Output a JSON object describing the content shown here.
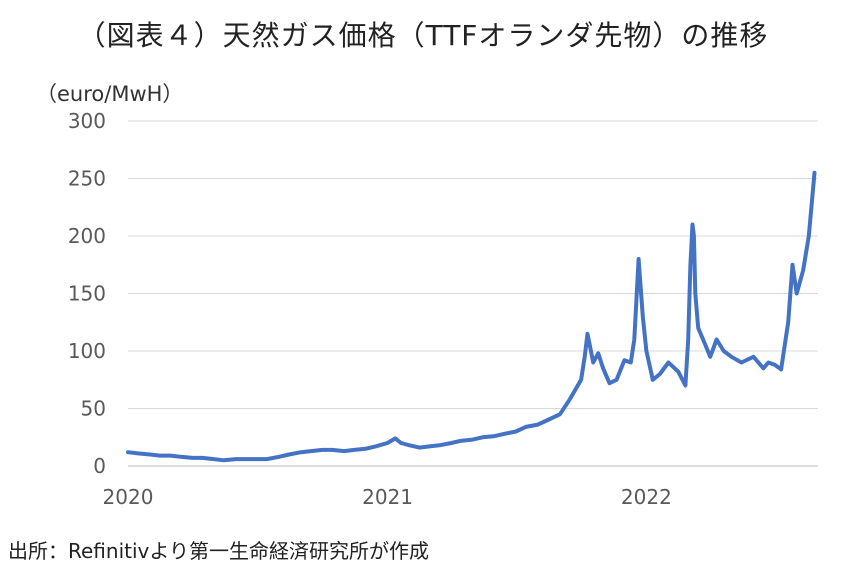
{
  "title": "（図表４）天然ガス価格（TTFオランダ先物）の推移",
  "unit_label": "（euro/MwH）",
  "source": "出所：Refinitivより第一生命経済研究所が作成",
  "chart_data": {
    "type": "line",
    "title": "（図表４）天然ガス価格（TTFオランダ先物）の推移",
    "ylabel": "（euro/MwH）",
    "xlabel": "",
    "ylim": [
      0,
      300
    ],
    "yticks": [
      "0",
      "50",
      "100",
      "150",
      "200",
      "250",
      "300"
    ],
    "xlim": [
      "2020-01-01",
      "2022-08-31"
    ],
    "xticks": [
      {
        "date": "2020-01-01",
        "label": "2020"
      },
      {
        "date": "2021-01-01",
        "label": "2021"
      },
      {
        "date": "2022-01-01",
        "label": "2022"
      }
    ],
    "grid": true,
    "color": "#4472c4",
    "series": [
      {
        "x": [
          "2020-01-01",
          "2020-01-15",
          "2020-02-01",
          "2020-02-15",
          "2020-03-01",
          "2020-03-15",
          "2020-04-01",
          "2020-04-15",
          "2020-05-01",
          "2020-05-15",
          "2020-06-01",
          "2020-06-15",
          "2020-07-01",
          "2020-07-15",
          "2020-08-01",
          "2020-08-15",
          "2020-09-01",
          "2020-09-15",
          "2020-10-01",
          "2020-10-15",
          "2020-11-01",
          "2020-11-15",
          "2020-12-01",
          "2020-12-15",
          "2021-01-01",
          "2021-01-12",
          "2021-01-20",
          "2021-02-01",
          "2021-02-15",
          "2021-03-01",
          "2021-03-15",
          "2021-04-01",
          "2021-04-15",
          "2021-05-01",
          "2021-05-15",
          "2021-06-01",
          "2021-06-15",
          "2021-07-01",
          "2021-07-15",
          "2021-08-01",
          "2021-08-15",
          "2021-09-01",
          "2021-09-15",
          "2021-10-01",
          "2021-10-06",
          "2021-10-10",
          "2021-10-18",
          "2021-10-25",
          "2021-11-01",
          "2021-11-10",
          "2021-11-20",
          "2021-12-01",
          "2021-12-10",
          "2021-12-15",
          "2021-12-21",
          "2021-12-27",
          "2022-01-01",
          "2022-01-10",
          "2022-01-20",
          "2022-02-01",
          "2022-02-15",
          "2022-02-25",
          "2022-03-01",
          "2022-03-04",
          "2022-03-07",
          "2022-03-09",
          "2022-03-11",
          "2022-03-15",
          "2022-03-22",
          "2022-04-01",
          "2022-04-10",
          "2022-04-20",
          "2022-05-01",
          "2022-05-15",
          "2022-06-01",
          "2022-06-15",
          "2022-06-22",
          "2022-07-01",
          "2022-07-10",
          "2022-07-20",
          "2022-07-26",
          "2022-08-01",
          "2022-08-10",
          "2022-08-18",
          "2022-08-26"
        ],
        "y": [
          12,
          11,
          10,
          9,
          9,
          8,
          7,
          7,
          6,
          5,
          6,
          6,
          6,
          6,
          8,
          10,
          12,
          13,
          14,
          14,
          13,
          14,
          15,
          17,
          20,
          24,
          20,
          18,
          16,
          17,
          18,
          20,
          22,
          23,
          25,
          26,
          28,
          30,
          34,
          36,
          40,
          45,
          58,
          75,
          95,
          115,
          90,
          98,
          85,
          72,
          75,
          92,
          90,
          110,
          180,
          130,
          100,
          75,
          80,
          90,
          82,
          70,
          110,
          175,
          210,
          200,
          150,
          120,
          110,
          95,
          110,
          100,
          95,
          90,
          95,
          85,
          90,
          88,
          84,
          125,
          175,
          150,
          170,
          200,
          255
        ]
      }
    ]
  }
}
